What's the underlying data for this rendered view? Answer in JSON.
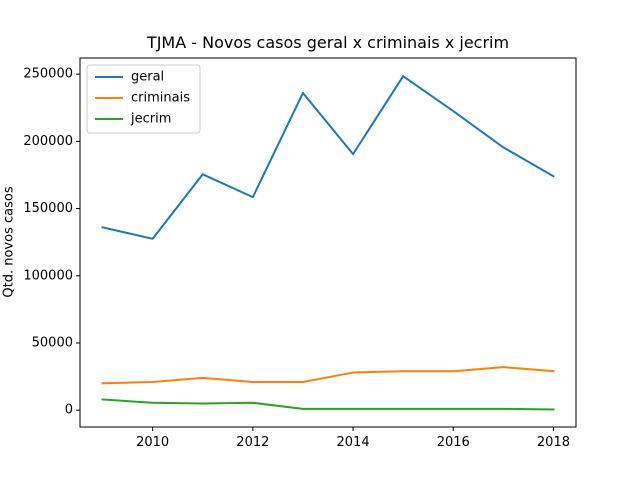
{
  "chart_data": {
    "type": "line",
    "title": "TJMA - Novos casos geral x criminais x jecrim",
    "xlabel": "",
    "ylabel": "Qtd. novos casos",
    "x": [
      2009,
      2010,
      2011,
      2012,
      2013,
      2014,
      2015,
      2016,
      2017,
      2018
    ],
    "xlim": [
      2008.55,
      2018.45
    ],
    "ylim": [
      -12500,
      262000
    ],
    "xticks": [
      2010,
      2012,
      2014,
      2016,
      2018
    ],
    "yticks": [
      0,
      50000,
      100000,
      150000,
      200000,
      250000
    ],
    "legend": "top-left",
    "grid": false,
    "series": [
      {
        "name": "geral",
        "color": "#1f77b4",
        "values": [
          136000,
          127500,
          175500,
          158500,
          236000,
          190500,
          248500,
          222500,
          195500,
          174000
        ]
      },
      {
        "name": "criminais",
        "color": "#ff7f0e",
        "values": [
          20000,
          21000,
          24000,
          21000,
          21000,
          28000,
          29000,
          29000,
          32000,
          29000
        ]
      },
      {
        "name": "jecrim",
        "color": "#2ca02c",
        "values": [
          8000,
          5500,
          5000,
          5500,
          1000,
          1000,
          1000,
          1000,
          1000,
          500
        ]
      }
    ]
  }
}
